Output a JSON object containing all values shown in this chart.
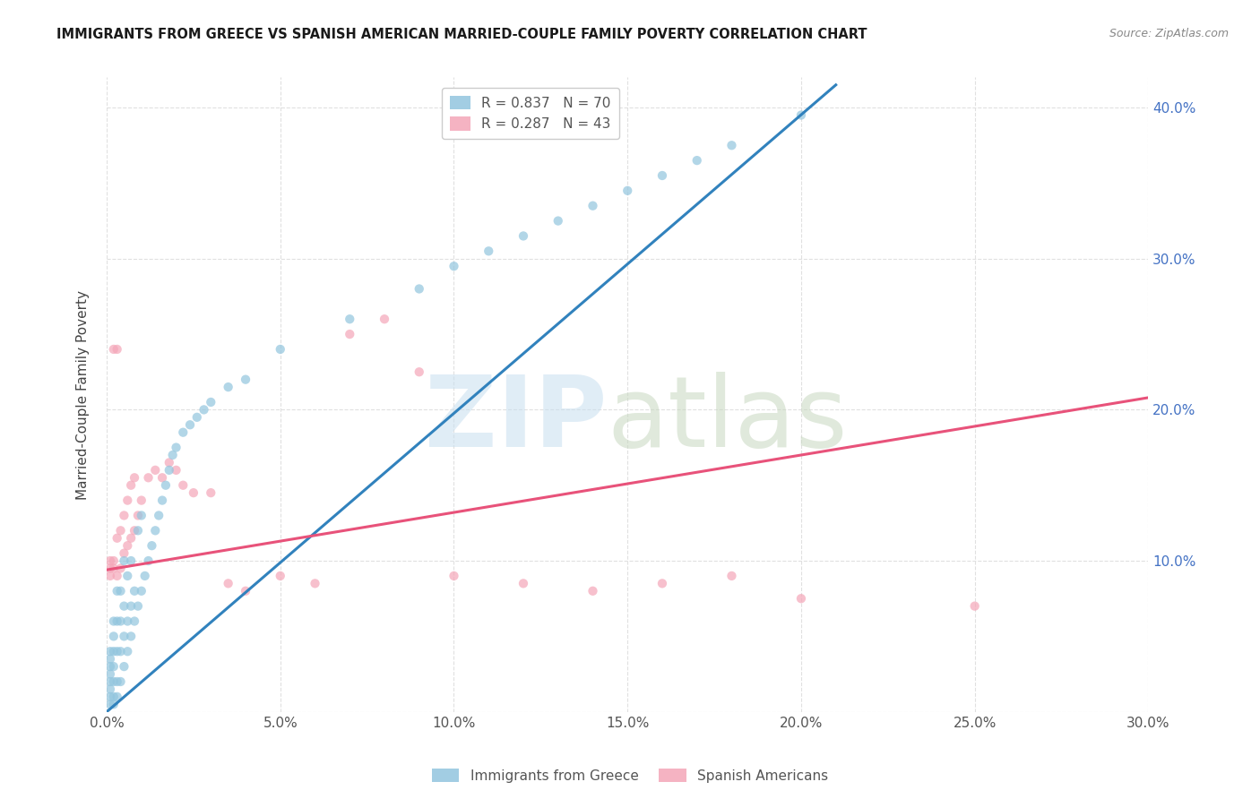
{
  "title": "IMMIGRANTS FROM GREECE VS SPANISH AMERICAN MARRIED-COUPLE FAMILY POVERTY CORRELATION CHART",
  "source": "Source: ZipAtlas.com",
  "ylabel": "Married-Couple Family Poverty",
  "xlim": [
    0.0,
    0.3
  ],
  "ylim": [
    0.0,
    0.42
  ],
  "xtick_vals": [
    0.0,
    0.05,
    0.1,
    0.15,
    0.2,
    0.25,
    0.3
  ],
  "xtick_labels": [
    "0.0%",
    "5.0%",
    "10.0%",
    "15.0%",
    "20.0%",
    "25.0%",
    "30.0%"
  ],
  "ytick_vals": [
    0.0,
    0.1,
    0.2,
    0.3,
    0.4
  ],
  "ytick_right_labels": [
    "",
    "10.0%",
    "20.0%",
    "30.0%",
    "40.0%"
  ],
  "blue_R": 0.837,
  "blue_N": 70,
  "pink_R": 0.287,
  "pink_N": 43,
  "blue_color": "#92c5de",
  "pink_color": "#f4a6b8",
  "blue_line_color": "#3182bd",
  "pink_line_color": "#e8527a",
  "blue_line_x0": 0.0,
  "blue_line_y0": 0.0,
  "blue_line_x1": 0.21,
  "blue_line_y1": 0.415,
  "pink_line_x0": 0.0,
  "pink_line_y0": 0.094,
  "pink_line_x1": 0.3,
  "pink_line_y1": 0.208,
  "blue_scatter_x": [
    0.001,
    0.001,
    0.001,
    0.001,
    0.001,
    0.001,
    0.001,
    0.001,
    0.002,
    0.002,
    0.002,
    0.002,
    0.002,
    0.002,
    0.002,
    0.003,
    0.003,
    0.003,
    0.003,
    0.003,
    0.004,
    0.004,
    0.004,
    0.004,
    0.005,
    0.005,
    0.005,
    0.005,
    0.006,
    0.006,
    0.006,
    0.007,
    0.007,
    0.007,
    0.008,
    0.008,
    0.009,
    0.009,
    0.01,
    0.01,
    0.011,
    0.012,
    0.013,
    0.014,
    0.015,
    0.016,
    0.017,
    0.018,
    0.019,
    0.02,
    0.022,
    0.024,
    0.026,
    0.028,
    0.03,
    0.035,
    0.04,
    0.05,
    0.07,
    0.09,
    0.1,
    0.11,
    0.12,
    0.13,
    0.14,
    0.15,
    0.16,
    0.17,
    0.18,
    0.2
  ],
  "blue_scatter_y": [
    0.005,
    0.01,
    0.015,
    0.02,
    0.025,
    0.03,
    0.035,
    0.04,
    0.005,
    0.01,
    0.02,
    0.03,
    0.04,
    0.05,
    0.06,
    0.01,
    0.02,
    0.04,
    0.06,
    0.08,
    0.02,
    0.04,
    0.06,
    0.08,
    0.03,
    0.05,
    0.07,
    0.1,
    0.04,
    0.06,
    0.09,
    0.05,
    0.07,
    0.1,
    0.06,
    0.08,
    0.07,
    0.12,
    0.08,
    0.13,
    0.09,
    0.1,
    0.11,
    0.12,
    0.13,
    0.14,
    0.15,
    0.16,
    0.17,
    0.175,
    0.185,
    0.19,
    0.195,
    0.2,
    0.205,
    0.215,
    0.22,
    0.24,
    0.26,
    0.28,
    0.295,
    0.305,
    0.315,
    0.325,
    0.335,
    0.345,
    0.355,
    0.365,
    0.375,
    0.395
  ],
  "pink_scatter_x": [
    0.001,
    0.001,
    0.001,
    0.002,
    0.002,
    0.002,
    0.003,
    0.003,
    0.003,
    0.004,
    0.004,
    0.005,
    0.005,
    0.006,
    0.006,
    0.007,
    0.007,
    0.008,
    0.008,
    0.009,
    0.01,
    0.012,
    0.014,
    0.016,
    0.018,
    0.02,
    0.022,
    0.025,
    0.03,
    0.035,
    0.04,
    0.05,
    0.06,
    0.07,
    0.08,
    0.09,
    0.1,
    0.12,
    0.14,
    0.16,
    0.18,
    0.2,
    0.25
  ],
  "pink_scatter_y": [
    0.09,
    0.1,
    0.095,
    0.24,
    0.095,
    0.1,
    0.24,
    0.09,
    0.115,
    0.12,
    0.095,
    0.13,
    0.105,
    0.14,
    0.11,
    0.15,
    0.115,
    0.155,
    0.12,
    0.13,
    0.14,
    0.155,
    0.16,
    0.155,
    0.165,
    0.16,
    0.15,
    0.145,
    0.145,
    0.085,
    0.08,
    0.09,
    0.085,
    0.25,
    0.26,
    0.225,
    0.09,
    0.085,
    0.08,
    0.085,
    0.09,
    0.075,
    0.07
  ],
  "background_color": "#ffffff",
  "grid_color": "#e0e0e0"
}
